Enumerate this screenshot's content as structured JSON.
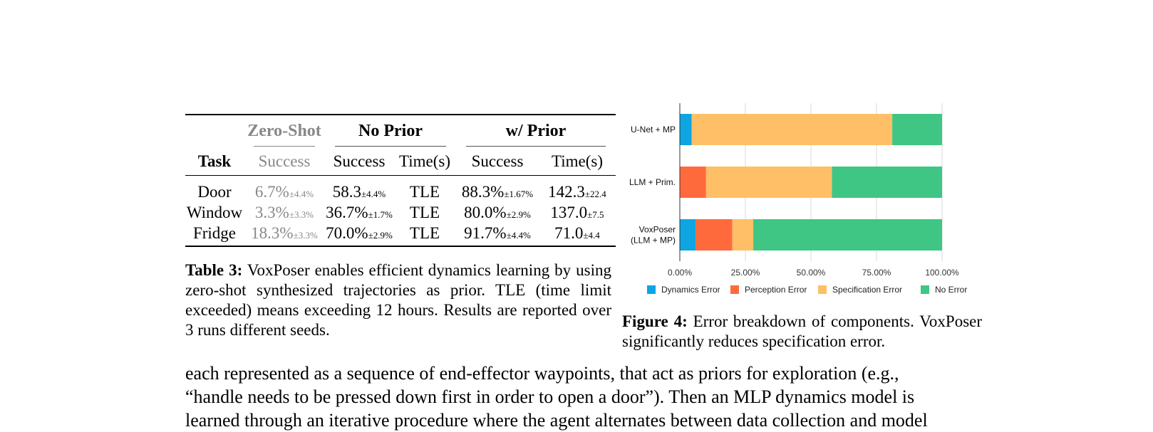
{
  "table": {
    "group_headers": {
      "zero_shot": "Zero-Shot",
      "no_prior": "No Prior",
      "w_prior": "w/ Prior"
    },
    "sub_headers": {
      "task": "Task",
      "zs_success": "Success",
      "np_success": "Success",
      "np_time": "Time(s)",
      "wp_success": "Success",
      "wp_time": "Time(s)"
    },
    "rows": [
      {
        "task": "Door",
        "zs": "6.7%",
        "zs_pm": "±4.4%",
        "np": "58.3",
        "np_pm": "±4.4%",
        "np_time": "TLE",
        "wp": "88.3%",
        "wp_pm": "±1.67%",
        "wp_time": "142.3",
        "wp_time_pm": "±22.4"
      },
      {
        "task": "Window",
        "zs": "3.3%",
        "zs_pm": "±3.3%",
        "np": "36.7%",
        "np_pm": "±1.7%",
        "np_time": "TLE",
        "wp": "80.0%",
        "wp_pm": "±2.9%",
        "wp_time": "137.0",
        "wp_time_pm": "±7.5"
      },
      {
        "task": "Fridge",
        "zs": "18.3%",
        "zs_pm": "±3.3%",
        "np": "70.0%",
        "np_pm": "±2.9%",
        "np_time": "TLE",
        "wp": "91.7%",
        "wp_pm": "±4.4%",
        "wp_time": "71.0",
        "wp_time_pm": "±4.4"
      }
    ],
    "caption_label": "Table 3:",
    "caption_text": "VoxPoser enables efficient dynamics learning by using zero-shot synthesized trajectories as prior. TLE (time limit exceeded) means exceeding 12 hours. Results are reported over 3 runs different seeds."
  },
  "chart_data": {
    "type": "bar",
    "orientation": "horizontal",
    "stacked": true,
    "categories": [
      "U-Net + MP",
      "LLM + Prim.",
      "VoxPoser\n(LLM + MP)"
    ],
    "category_lines": [
      [
        "U-Net + MP"
      ],
      [
        "LLM + Prim."
      ],
      [
        "VoxPoser",
        "(LLM + MP)"
      ]
    ],
    "series": [
      {
        "name": "Dynamics Error",
        "color": "#0ea5e2",
        "values": [
          4.5,
          0,
          6
        ]
      },
      {
        "name": "Perception Error",
        "color": "#ff6a3d",
        "values": [
          0,
          10,
          14
        ]
      },
      {
        "name": "Specification Error",
        "color": "#ffbf66",
        "values": [
          76.5,
          48,
          8
        ]
      },
      {
        "name": "No Error",
        "color": "#3fc684",
        "values": [
          19,
          42,
          72
        ]
      }
    ],
    "x_ticks": [
      "0.00%",
      "25.00%",
      "50.00%",
      "75.00%",
      "100.00%"
    ],
    "xlim": [
      0,
      100
    ],
    "grid": true,
    "legend_position": "bottom"
  },
  "figure": {
    "caption_label": "Figure 4:",
    "caption_text": "Error breakdown of components. VoxPoser significantly reduces specification error."
  },
  "body": {
    "lines": [
      "each represented as a sequence of end-effector waypoints, that act as priors for exploration (e.g.,",
      "“handle needs to be pressed down first in order to open a door”). Then an MLP dynamics model is",
      "learned through an iterative procedure where the agent alternates between data collection and model"
    ]
  }
}
